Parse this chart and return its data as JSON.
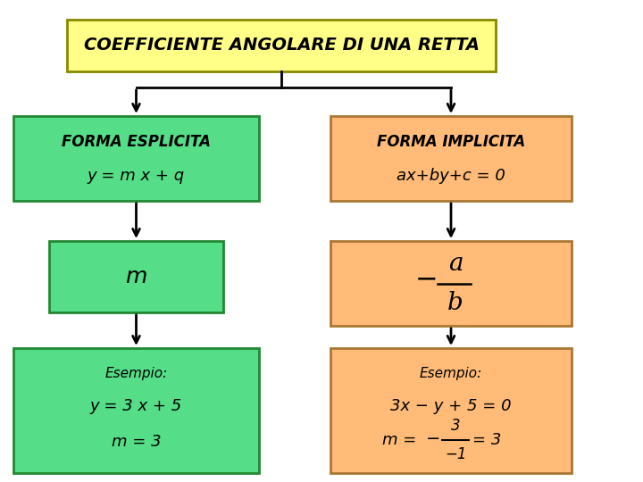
{
  "bg_color": "#FFFFFF",
  "title_color": "#FFFF88",
  "title_edge": "#888800",
  "left_color": "#55DD88",
  "left_edge": "#228833",
  "right_color": "#FFBB77",
  "right_edge": "#AA7733",
  "arrow_color": "#111111",
  "title_text": "COEFFICIENTE ANGOLARE DI UNA RETTA",
  "left_top_line1": "FORMA ESPLICITA",
  "left_top_line2": "y = m x + q",
  "left_mid_text": "m",
  "left_bot_line1": "Esempio:",
  "left_bot_line2": "y = 3 x + 5",
  "left_bot_line3": "m = 3",
  "right_top_line1": "FORMA IMPLICITA",
  "right_top_line2": "ax+by+c = 0",
  "right_bot_line1": "Esempio:",
  "right_bot_line2": "3x − y + 5 = 0",
  "title_fs": 14,
  "label_fs": 12,
  "formula_fs": 13,
  "esempio_fs": 11
}
